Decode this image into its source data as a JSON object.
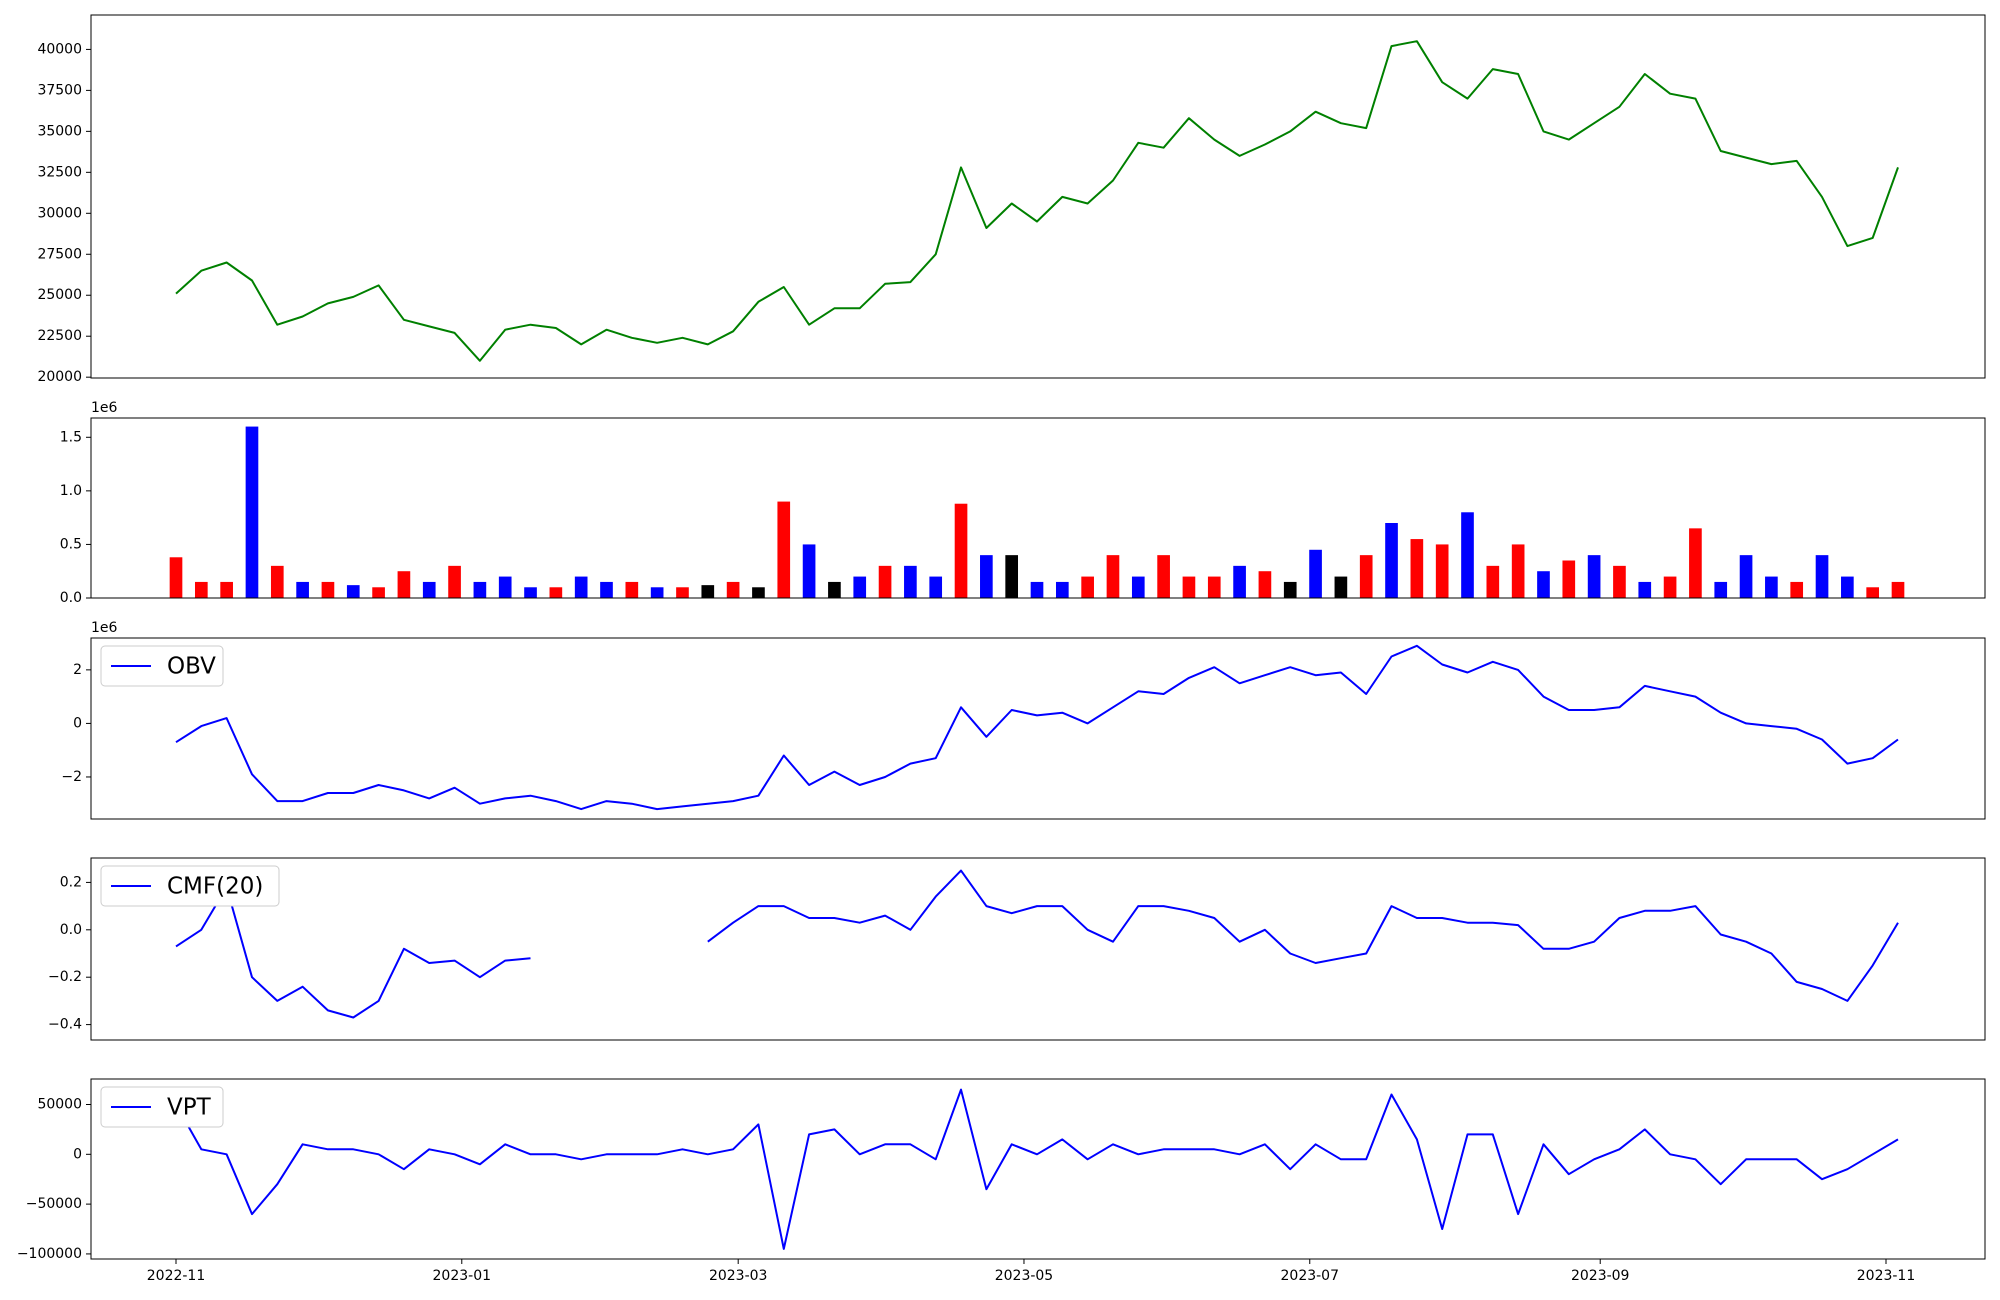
{
  "chart_data": [
    {
      "type": "line",
      "series": [
        {
          "color": "#008000",
          "values": [
            25100,
            26500,
            27000,
            25900,
            23200,
            23700,
            24500,
            24900,
            25600,
            23500,
            23100,
            22700,
            21000,
            22900,
            23200,
            23000,
            22000,
            22900,
            22400,
            22100,
            22400,
            22000,
            22800,
            24600,
            25500,
            23200,
            24200,
            24200,
            25700,
            25800,
            27500,
            32800,
            29100,
            30600,
            29500,
            31000,
            30600,
            32000,
            34300,
            34000,
            35800,
            34500,
            33500,
            34200,
            35000,
            36200,
            35500,
            35200,
            40200,
            40500,
            38000,
            37000,
            38800,
            38500,
            35000,
            34500,
            35500,
            36500,
            38500,
            37300,
            37000,
            33800,
            33400,
            33000,
            33200,
            31000,
            28000,
            28500,
            32800
          ]
        }
      ],
      "ylim": [
        19950,
        42100
      ],
      "yticks": [
        20000,
        22500,
        25000,
        27500,
        30000,
        32500,
        35000,
        37500,
        40000
      ]
    },
    {
      "type": "bar",
      "offset_label": "1e6",
      "values": [
        0.38,
        0.15,
        0.15,
        1.6,
        0.3,
        0.15,
        0.15,
        0.12,
        0.1,
        0.25,
        0.15,
        0.3,
        0.15,
        0.2,
        0.1,
        0.1,
        0.2,
        0.15,
        0.15,
        0.1,
        0.1,
        0.12,
        0.15,
        0.1,
        0.9,
        0.5,
        0.15,
        0.2,
        0.3,
        0.3,
        0.2,
        0.88,
        0.4,
        0.4,
        0.15,
        0.15,
        0.2,
        0.4,
        0.2,
        0.4,
        0.2,
        0.2,
        0.3,
        0.25,
        0.15,
        0.45,
        0.2,
        0.4,
        0.7,
        0.55,
        0.5,
        0.8,
        0.3,
        0.5,
        0.25,
        0.35,
        0.4,
        0.3,
        0.15,
        0.2,
        0.65,
        0.15,
        0.4,
        0.2,
        0.15,
        0.4,
        0.2,
        0.1,
        0.15
      ],
      "colors": [
        "red",
        "red",
        "red",
        "blue",
        "red",
        "blue",
        "red",
        "blue",
        "red",
        "red",
        "blue",
        "red",
        "blue",
        "blue",
        "blue",
        "red",
        "blue",
        "blue",
        "red",
        "blue",
        "red",
        "black",
        "red",
        "black",
        "red",
        "blue",
        "black",
        "blue",
        "red",
        "blue",
        "blue",
        "red",
        "blue",
        "black",
        "blue",
        "blue",
        "red",
        "red",
        "blue",
        "red",
        "red",
        "red",
        "blue",
        "red",
        "black",
        "blue",
        "black",
        "red",
        "blue",
        "red",
        "red",
        "blue",
        "red",
        "red",
        "blue",
        "red",
        "blue",
        "red",
        "blue",
        "red",
        "red",
        "blue",
        "blue",
        "blue",
        "red",
        "blue",
        "blue",
        "red",
        "red"
      ],
      "ylim": [
        0,
        1.68
      ],
      "yticks": [
        {
          "value": 0,
          "label": "0.0"
        },
        {
          "value": 0.5,
          "label": "0.5"
        },
        {
          "value": 1.0,
          "label": "1.0"
        },
        {
          "value": 1.5,
          "label": "1.5"
        }
      ]
    },
    {
      "type": "line",
      "offset_label": "1e6",
      "legend": "upper left",
      "series": [
        {
          "name": "OBV",
          "color": "#0000ff",
          "values": [
            -0.7,
            -0.1,
            0.2,
            -1.9,
            -2.9,
            -2.9,
            -2.6,
            -2.6,
            -2.3,
            -2.5,
            -2.8,
            -2.4,
            -3.0,
            -2.8,
            -2.7,
            -2.9,
            -3.2,
            -2.9,
            -3.0,
            -3.2,
            -3.1,
            -3.0,
            -2.9,
            -2.7,
            -1.2,
            -2.3,
            -1.8,
            -2.3,
            -2.0,
            -1.5,
            -1.3,
            0.6,
            -0.5,
            0.5,
            0.3,
            0.4,
            0.0,
            0.6,
            1.2,
            1.1,
            1.7,
            2.1,
            1.5,
            1.8,
            2.1,
            1.8,
            1.9,
            1.1,
            2.5,
            2.9,
            2.2,
            1.9,
            2.3,
            2.0,
            1.0,
            0.5,
            0.5,
            0.6,
            1.4,
            1.2,
            1.0,
            0.4,
            0.0,
            -0.1,
            -0.2,
            -0.6,
            -1.5,
            -1.3,
            -0.6
          ]
        }
      ],
      "ylim": [
        -3.57,
        3.19
      ],
      "yticks": [
        {
          "value": -2,
          "label": "−2"
        },
        0,
        2
      ]
    },
    {
      "type": "line",
      "legend": "upper left",
      "series": [
        {
          "name": "CMF(20)",
          "color": "#0000ff",
          "values": [
            -0.07,
            0.0,
            0.18,
            -0.2,
            -0.3,
            -0.24,
            -0.34,
            -0.37,
            -0.3,
            -0.08,
            -0.14,
            -0.13,
            -0.2,
            -0.13,
            -0.12,
            null,
            null,
            null,
            null,
            null,
            null,
            -0.05,
            0.03,
            0.1,
            0.1,
            0.05,
            0.05,
            0.03,
            0.06,
            0.0,
            0.14,
            0.25,
            0.1,
            0.07,
            0.1,
            0.1,
            0.0,
            -0.05,
            0.1,
            0.1,
            0.08,
            0.05,
            -0.05,
            0.0,
            -0.1,
            -0.14,
            -0.12,
            -0.1,
            0.1,
            0.05,
            0.05,
            0.03,
            0.03,
            0.02,
            -0.08,
            -0.08,
            -0.05,
            0.05,
            0.08,
            0.08,
            0.1,
            -0.02,
            -0.05,
            -0.1,
            -0.22,
            -0.25,
            -0.3,
            -0.15,
            0.03
          ]
        }
      ],
      "ylim": [
        -0.465,
        0.303
      ],
      "yticks": [
        {
          "value": -0.4,
          "label": "−0.4"
        },
        {
          "value": -0.2,
          "label": "−0.2"
        },
        {
          "value": 0,
          "label": "0.0"
        },
        0.2
      ]
    },
    {
      "type": "line",
      "legend": "upper left",
      "series": [
        {
          "name": "VPT",
          "color": "#0000ff",
          "values": [
            50000,
            5000,
            0,
            -60000,
            -30000,
            10000,
            5000,
            5000,
            0,
            -15000,
            5000,
            0,
            -10000,
            10000,
            0,
            0,
            -5000,
            0,
            0,
            0,
            5000,
            0,
            5000,
            30000,
            -95000,
            20000,
            25000,
            0,
            10000,
            10000,
            -5000,
            65000,
            -35000,
            10000,
            0,
            15000,
            -5000,
            10000,
            0,
            5000,
            5000,
            5000,
            0,
            10000,
            -15000,
            10000,
            -5000,
            -5000,
            60000,
            15000,
            -75000,
            20000,
            20000,
            -60000,
            10000,
            -20000,
            -5000,
            5000,
            25000,
            0,
            -5000,
            -30000,
            -5000,
            -5000,
            -5000,
            -25000,
            -15000,
            0,
            15000
          ]
        }
      ],
      "ylim": [
        -105100,
        75600
      ],
      "yticks": [
        {
          "value": -100000,
          "label": "−100000"
        },
        {
          "value": -50000,
          "label": "−50000"
        },
        0,
        50000
      ],
      "xticks": [
        "2022-11",
        "2023-01",
        "2023-03",
        "2023-05",
        "2023-07",
        "2023-09",
        "2023-11"
      ]
    }
  ]
}
